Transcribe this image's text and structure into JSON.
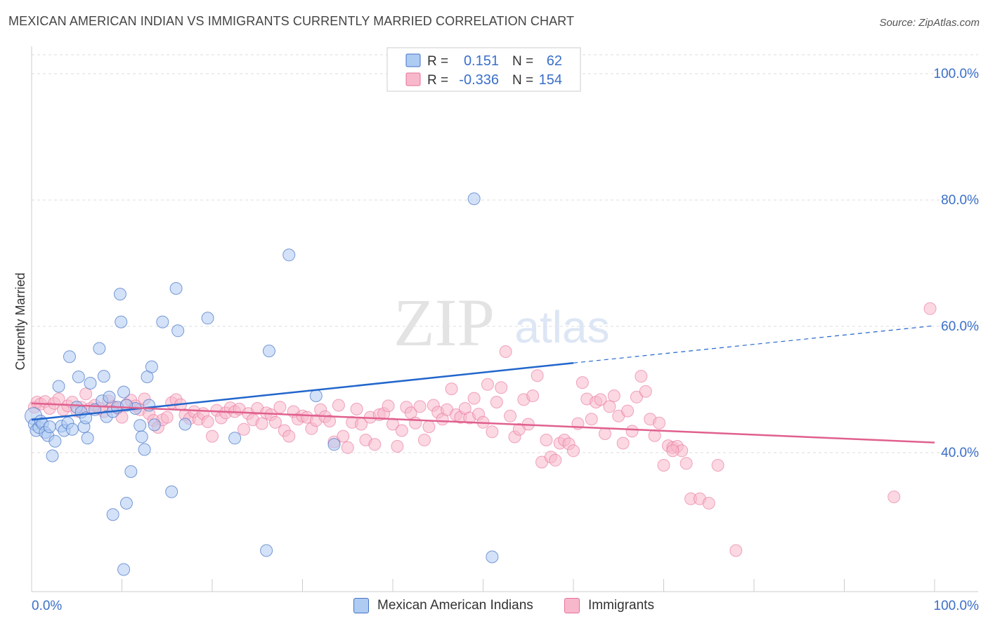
{
  "header": {
    "title": "MEXICAN AMERICAN INDIAN VS IMMIGRANTS CURRENTLY MARRIED CORRELATION CHART",
    "source": "Source: ZipAtlas.com"
  },
  "watermark": {
    "zip": "ZIP",
    "atlas": "atlas"
  },
  "colors": {
    "blue": "#4472c4",
    "blue_fill": "#aecbf2",
    "blue_line": "#2266cc",
    "pink": "#e8709a",
    "pink_fill": "#f7b8cb",
    "pink_line": "#e0608e",
    "tick_label": "#3b6fc9",
    "grid": "#dddddd"
  },
  "stats_legend": {
    "rows": [
      {
        "r_label": "R =",
        "r_value": "0.151",
        "n_label": "N =",
        "n_value": "62"
      },
      {
        "r_label": "R =",
        "r_value": "-0.336",
        "n_label": "N =",
        "n_value": "154"
      }
    ]
  },
  "bottom_legend": [
    {
      "label": "Mexican American Indians"
    },
    {
      "label": "Immigrants"
    }
  ],
  "chart_data": {
    "type": "scatter",
    "ylabel": "Currently Married",
    "xlim": [
      0,
      100
    ],
    "ylim": [
      18,
      103
    ],
    "y_ticks": [
      {
        "value": 40,
        "label": "40.0%"
      },
      {
        "value": 60,
        "label": "60.0%"
      },
      {
        "value": 80,
        "label": "80.0%"
      },
      {
        "value": 100,
        "label": "100.0%"
      }
    ],
    "x_tick_labels": {
      "min": "0.0%",
      "max": "100.0%"
    },
    "series": [
      {
        "name": "Mexican American Indians",
        "trend": {
          "x0": 0,
          "y0": 45.2,
          "x1": 60,
          "y1": 54.2,
          "dashed_to_x": 100,
          "dashed_to_y": 60.1
        },
        "points": [
          [
            0.2,
            45.8
          ],
          [
            0.3,
            44.5
          ],
          [
            0.5,
            43.5
          ],
          [
            0.8,
            44.0
          ],
          [
            1.0,
            45.0
          ],
          [
            1.2,
            44.6
          ],
          [
            1.5,
            43.2
          ],
          [
            1.8,
            42.7
          ],
          [
            2.0,
            44.1
          ],
          [
            2.3,
            39.5
          ],
          [
            2.6,
            41.8
          ],
          [
            3.0,
            50.5
          ],
          [
            3.3,
            44.2
          ],
          [
            3.6,
            43.5
          ],
          [
            4.0,
            44.7
          ],
          [
            4.2,
            55.2
          ],
          [
            4.5,
            43.7
          ],
          [
            5.0,
            47.2
          ],
          [
            5.2,
            52.0
          ],
          [
            5.5,
            46.4
          ],
          [
            5.8,
            44.1
          ],
          [
            6.0,
            45.5
          ],
          [
            6.2,
            42.3
          ],
          [
            6.5,
            51.0
          ],
          [
            7.0,
            46.8
          ],
          [
            7.5,
            56.5
          ],
          [
            7.8,
            48.2
          ],
          [
            8.0,
            52.1
          ],
          [
            8.3,
            45.7
          ],
          [
            8.6,
            48.8
          ],
          [
            9.0,
            46.5
          ],
          [
            9.5,
            47.2
          ],
          [
            9.8,
            65.1
          ],
          [
            9.9,
            60.7
          ],
          [
            10.2,
            49.6
          ],
          [
            10.5,
            32.0
          ],
          [
            11.0,
            37.0
          ],
          [
            11.5,
            47.0
          ],
          [
            12.0,
            44.3
          ],
          [
            12.2,
            42.5
          ],
          [
            12.5,
            40.5
          ],
          [
            12.8,
            52.0
          ],
          [
            13.0,
            47.5
          ],
          [
            13.3,
            53.6
          ],
          [
            13.6,
            44.4
          ],
          [
            14.5,
            60.7
          ],
          [
            15.5,
            33.8
          ],
          [
            16.0,
            66.0
          ],
          [
            16.2,
            59.3
          ],
          [
            17.0,
            44.5
          ],
          [
            19.5,
            61.3
          ],
          [
            22.5,
            42.3
          ],
          [
            26.0,
            24.5
          ],
          [
            26.3,
            56.1
          ],
          [
            28.5,
            71.3
          ],
          [
            9.0,
            30.2
          ],
          [
            10.2,
            21.5
          ],
          [
            31.5,
            49.0
          ],
          [
            33.5,
            41.3
          ],
          [
            49.0,
            80.2
          ],
          [
            51.0,
            23.5
          ],
          [
            10.5,
            47.5
          ]
        ]
      },
      {
        "name": "Immigrants",
        "trend": {
          "x0": 0,
          "y0": 47.8,
          "x1": 100,
          "y1": 41.6
        },
        "points": [
          [
            0.3,
            47.2
          ],
          [
            0.6,
            48.0
          ],
          [
            1.0,
            47.7
          ],
          [
            1.5,
            48.1
          ],
          [
            2.0,
            47.0
          ],
          [
            2.5,
            47.8
          ],
          [
            3.0,
            48.5
          ],
          [
            3.5,
            46.8
          ],
          [
            4.0,
            47.4
          ],
          [
            4.5,
            48.0
          ],
          [
            5.0,
            46.6
          ],
          [
            5.5,
            47.2
          ],
          [
            6.0,
            49.3
          ],
          [
            6.5,
            47.0
          ],
          [
            7.0,
            47.5
          ],
          [
            7.5,
            47.0
          ],
          [
            8.0,
            46.5
          ],
          [
            8.5,
            48.2
          ],
          [
            9.0,
            47.3
          ],
          [
            9.5,
            47.0
          ],
          [
            10.0,
            45.6
          ],
          [
            10.5,
            47.6
          ],
          [
            11.0,
            48.3
          ],
          [
            11.5,
            47.4
          ],
          [
            12.0,
            46.8
          ],
          [
            12.5,
            48.5
          ],
          [
            13.0,
            46.2
          ],
          [
            13.5,
            45.1
          ],
          [
            14.0,
            44.0
          ],
          [
            14.5,
            45.2
          ],
          [
            15.0,
            45.6
          ],
          [
            15.5,
            47.9
          ],
          [
            16.0,
            48.4
          ],
          [
            16.5,
            47.6
          ],
          [
            17.0,
            46.0
          ],
          [
            17.5,
            45.4
          ],
          [
            18.0,
            46.5
          ],
          [
            18.5,
            45.3
          ],
          [
            19.0,
            46.2
          ],
          [
            19.5,
            44.9
          ],
          [
            20.0,
            42.6
          ],
          [
            20.5,
            46.7
          ],
          [
            21.0,
            45.5
          ],
          [
            21.5,
            46.3
          ],
          [
            22.0,
            47.1
          ],
          [
            22.5,
            46.5
          ],
          [
            23.0,
            46.9
          ],
          [
            23.5,
            43.7
          ],
          [
            24.0,
            46.2
          ],
          [
            24.5,
            45.2
          ],
          [
            25.0,
            47.0
          ],
          [
            25.5,
            44.6
          ],
          [
            26.0,
            46.3
          ],
          [
            26.5,
            46.0
          ],
          [
            27.0,
            44.8
          ],
          [
            27.5,
            47.2
          ],
          [
            28.0,
            43.5
          ],
          [
            28.5,
            42.6
          ],
          [
            29.0,
            46.5
          ],
          [
            29.5,
            45.3
          ],
          [
            30.0,
            45.8
          ],
          [
            30.5,
            45.6
          ],
          [
            31.0,
            43.8
          ],
          [
            31.5,
            45.1
          ],
          [
            32.0,
            46.8
          ],
          [
            32.5,
            45.7
          ],
          [
            33.0,
            45.0
          ],
          [
            33.5,
            41.7
          ],
          [
            34.0,
            47.5
          ],
          [
            34.5,
            42.6
          ],
          [
            35.0,
            40.8
          ],
          [
            35.5,
            44.8
          ],
          [
            36.0,
            46.9
          ],
          [
            36.5,
            44.5
          ],
          [
            37.0,
            42.0
          ],
          [
            37.5,
            45.6
          ],
          [
            38.0,
            41.3
          ],
          [
            38.5,
            46.0
          ],
          [
            39.0,
            46.2
          ],
          [
            39.5,
            47.4
          ],
          [
            40.0,
            44.5
          ],
          [
            40.5,
            41.0
          ],
          [
            41.0,
            43.5
          ],
          [
            41.5,
            47.2
          ],
          [
            42.0,
            46.3
          ],
          [
            42.5,
            44.7
          ],
          [
            43.0,
            47.3
          ],
          [
            43.5,
            42.0
          ],
          [
            44.0,
            44.1
          ],
          [
            44.5,
            47.5
          ],
          [
            45.0,
            46.4
          ],
          [
            45.5,
            45.3
          ],
          [
            46.0,
            46.8
          ],
          [
            46.5,
            50.1
          ],
          [
            47.0,
            46.0
          ],
          [
            47.5,
            45.6
          ],
          [
            48.0,
            47.0
          ],
          [
            48.5,
            45.5
          ],
          [
            49.0,
            48.6
          ],
          [
            49.5,
            46.1
          ],
          [
            50.0,
            44.8
          ],
          [
            50.5,
            50.8
          ],
          [
            51.0,
            43.3
          ],
          [
            51.5,
            48.0
          ],
          [
            52.0,
            50.3
          ],
          [
            52.5,
            56.0
          ],
          [
            53.0,
            45.8
          ],
          [
            53.5,
            42.5
          ],
          [
            54.0,
            43.7
          ],
          [
            54.5,
            48.4
          ],
          [
            55.0,
            44.5
          ],
          [
            55.5,
            49.0
          ],
          [
            56.0,
            52.2
          ],
          [
            56.5,
            38.5
          ],
          [
            57.0,
            42.0
          ],
          [
            57.5,
            39.3
          ],
          [
            58.0,
            38.8
          ],
          [
            58.5,
            41.5
          ],
          [
            59.0,
            42.0
          ],
          [
            59.5,
            41.4
          ],
          [
            60.0,
            40.3
          ],
          [
            60.5,
            44.6
          ],
          [
            61.0,
            51.1
          ],
          [
            61.5,
            48.5
          ],
          [
            62.0,
            45.3
          ],
          [
            62.5,
            48.0
          ],
          [
            63.0,
            48.4
          ],
          [
            63.5,
            43.0
          ],
          [
            64.0,
            47.3
          ],
          [
            64.5,
            49.0
          ],
          [
            65.0,
            45.8
          ],
          [
            65.5,
            41.5
          ],
          [
            66.0,
            46.6
          ],
          [
            66.5,
            43.4
          ],
          [
            67.0,
            48.8
          ],
          [
            67.5,
            52.1
          ],
          [
            68.0,
            49.7
          ],
          [
            68.5,
            45.3
          ],
          [
            69.0,
            42.7
          ],
          [
            69.5,
            44.7
          ],
          [
            70.0,
            38.0
          ],
          [
            70.5,
            41.1
          ],
          [
            71.0,
            40.8
          ],
          [
            71.5,
            41.0
          ],
          [
            72.0,
            40.3
          ],
          [
            72.5,
            38.3
          ],
          [
            73.0,
            32.7
          ],
          [
            74.0,
            32.7
          ],
          [
            75.0,
            32.0
          ],
          [
            76.0,
            38.0
          ],
          [
            78.0,
            24.5
          ],
          [
            95.5,
            33.0
          ],
          [
            99.5,
            62.8
          ],
          [
            71.0,
            40.3
          ]
        ]
      }
    ]
  }
}
